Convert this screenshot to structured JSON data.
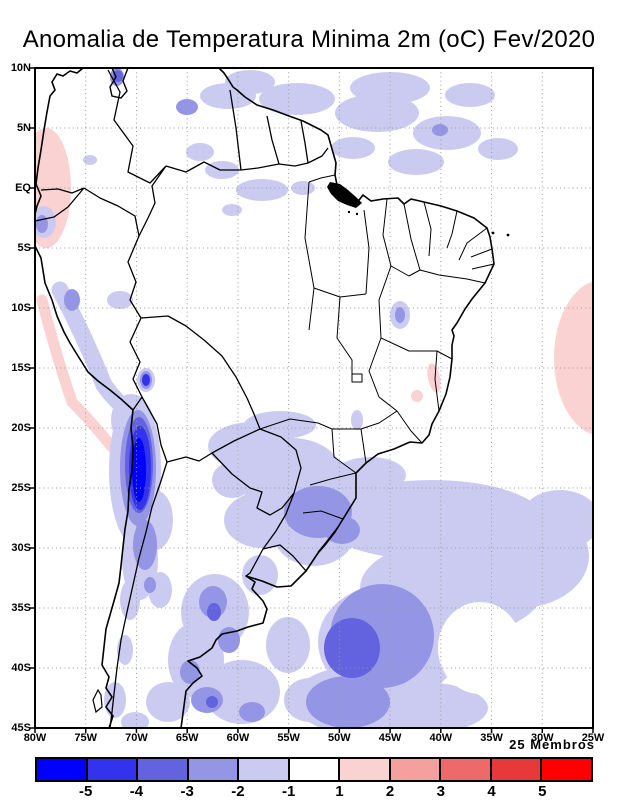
{
  "page": {
    "background": "#ffffff"
  },
  "chart_data": {
    "type": "heatmap",
    "subtype": "filled-contour-anomaly-map",
    "title": "Anomalia de Temperatura Minima 2m (oC) Fev/2020",
    "region": "South America",
    "ensemble_label": "25 Membros",
    "axes": {
      "lat_ticks": [
        "10N",
        "5N",
        "EQ",
        "5S",
        "10S",
        "15S",
        "20S",
        "25S",
        "30S",
        "35S",
        "40S",
        "45S"
      ],
      "lon_ticks": [
        "80W",
        "75W",
        "70W",
        "65W",
        "60W",
        "55W",
        "50W",
        "45W",
        "40W",
        "35W",
        "30W",
        "25W"
      ],
      "lat_range": [
        "10N",
        "45S"
      ],
      "lon_range": [
        "80W",
        "25W"
      ],
      "grid": "dotted"
    },
    "colorbar": {
      "unit": "oC",
      "tick_labels": [
        "-5",
        "-4",
        "-3",
        "-2",
        "-1",
        "1",
        "2",
        "3",
        "4",
        "5"
      ],
      "segment_colors": [
        "#0000ff",
        "#3333ee",
        "#6363e0",
        "#9595e6",
        "#cbcbf2",
        "#ffffff",
        "#fbd2d2",
        "#f59f9f",
        "#ee6a6a",
        "#e63939",
        "#ff0000"
      ]
    },
    "anomaly_features": [
      {
        "area": "Northern Chile coast / Atacama (20S-27S, ~70W)",
        "value_oC": "-5 or colder"
      },
      {
        "area": "Peru Andes coastal band (10S-18S)",
        "value_oC": "-1 to -2"
      },
      {
        "area": "South Atlantic center (~50W, 38S)",
        "value_oC": "-3 to -4"
      },
      {
        "area": "Broad South Atlantic (25S-44S, 25W-55W)",
        "value_oC": "-1 to -2"
      },
      {
        "area": "Paraguay / southern Brazil (20S-30S)",
        "value_oC": "-1 to -3"
      },
      {
        "area": "Patagonia / southern Argentina (36S-45S)",
        "value_oC": "-1 to -3 patches"
      },
      {
        "area": "Venezuela / Guianas / far northern Brazil (0-10N)",
        "value_oC": "-1 to -3 patches"
      },
      {
        "area": "Lake Titicaca region (~16S, 69W)",
        "value_oC": "-3 to -4 spot"
      },
      {
        "area": "Pacific off Colombia/Ecuador (~79W, EQ-8N)",
        "value_oC": "+1 to +2"
      },
      {
        "area": "Pacific offshore Peru-N.Chile (10S-22S)",
        "value_oC": "+1 to +2 band"
      },
      {
        "area": "Atlantic at east edge (10S-15S, ~27W)",
        "value_oC": "+1 to +2"
      },
      {
        "area": "East Brazil coast spots (~17S, 41W)",
        "value_oC": "+1 to +2"
      }
    ]
  }
}
